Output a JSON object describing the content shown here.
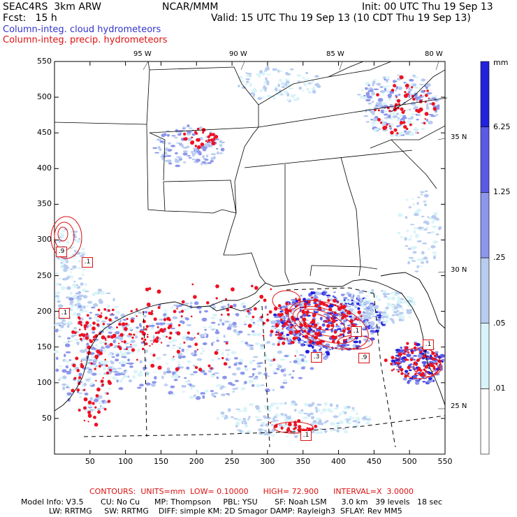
{
  "header": {
    "model": "SEAC4RS  3km ARW",
    "center": "NCAR/MMM",
    "init": "Init: 00 UTC Thu 19 Sep 13",
    "fcst": "Fcst:   15 h",
    "valid": "Valid: 15 UTC Thu 19 Sep 13 (10 CDT Thu 19 Sep 13)"
  },
  "legend": {
    "cloud": "Column-integ. cloud hydrometeors",
    "precip": "Column-integ. precip. hydrometeors",
    "cloud_color": "#3333cc",
    "precip_color": "#dd1111"
  },
  "colorbar": {
    "units": "mm",
    "levels": [
      ".01",
      ".05",
      ".25",
      "1.25",
      "6.25"
    ],
    "colors": [
      "#ffffff",
      "#d8f4f8",
      "#b8ccf0",
      "#8c96ec",
      "#5a5ae6",
      "#2222dd"
    ]
  },
  "axes": {
    "x_ticks": [
      "50",
      "100",
      "150",
      "200",
      "250",
      "300",
      "350",
      "400",
      "450",
      "500",
      "550"
    ],
    "y_ticks": [
      "50",
      "100",
      "150",
      "200",
      "250",
      "300",
      "350",
      "400",
      "450",
      "500",
      "550"
    ],
    "lon_labels": [
      "95 W",
      "90 W",
      "85 W",
      "80 W"
    ],
    "lat_labels": [
      "35 N",
      "30 N",
      "25 N"
    ]
  },
  "contour_labels": [
    ".9",
    ".1",
    ".1",
    ".1",
    ".3",
    ".9",
    ".1",
    ".1"
  ],
  "footer": {
    "contours": "CONTOURS:  UNITS=mm  LOW= 0.10000      HIGH= 72.900      INTERVAL=X  3.0000",
    "line1": "Model Info: V3.5       CU: No Cu      MP: Thompson     PBL: YSU       SF: Noah LSM      3.0 km   39 levels   18 sec",
    "line2": "LW: RRTMG     SW: RRTMG    DIFF: simple KM: 2D Smagor DAMP: Rayleigh3  SFLAY: Rev MM5"
  }
}
